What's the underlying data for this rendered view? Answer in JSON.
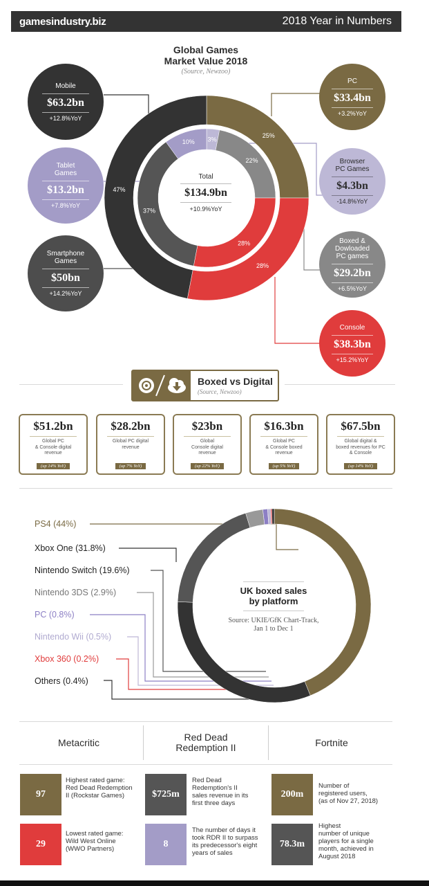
{
  "header": {
    "logo": "gamesindustry.biz",
    "title": "2018 Year in Numbers"
  },
  "market": {
    "title_line1": "Global Games",
    "title_line2": "Market Value 2018",
    "source": "(Source, Newzoo)",
    "total_label": "Total",
    "total_value": "$134.9bn",
    "total_yoy": "+10.9%YoY"
  },
  "bubbles": {
    "mobile": {
      "label": "Mobile",
      "value": "$63.2bn",
      "yoy": "+12.8%YoY",
      "color": "#333333"
    },
    "tablet": {
      "label1": "Tablet",
      "label2": "Games",
      "value": "$13.2bn",
      "yoy": "+7.8%YoY",
      "color": "#a39cc7"
    },
    "smartphone": {
      "label1": "Smartphone",
      "label2": "Games",
      "value": "$50bn",
      "yoy": "+14.2%YoY",
      "color": "#4d4d4d"
    },
    "pc": {
      "label": "PC",
      "value": "$33.4bn",
      "yoy": "+3.2%YoY",
      "color": "#7a6a43"
    },
    "browser": {
      "label1": "Browser",
      "label2": "PC Games",
      "value": "$4.3bn",
      "yoy": "-14.8%YoY",
      "color": "#bdb8d6"
    },
    "boxed": {
      "label1": "Boxed &",
      "label2": "Dowloaded",
      "label3": "PC games",
      "value": "$29.2bn",
      "yoy": "+6.5%YoY",
      "color": "#888888"
    },
    "console": {
      "label": "Console",
      "value": "$38.3bn",
      "yoy": "+15.2%YoY",
      "color": "#e03c3c"
    }
  },
  "boxed_digital": {
    "title": "Boxed vs Digital",
    "source": "(Source, Newzoo)",
    "cards": [
      {
        "value": "$51.2bn",
        "desc1": "Global PC",
        "desc2": "& Console digital",
        "desc3": "revenue",
        "badge": "(up 14% YoY)"
      },
      {
        "value": "$28.2bn",
        "desc1": "Global PC digital",
        "desc2": "revenue",
        "desc3": "",
        "badge": "(up 7% YoY)"
      },
      {
        "value": "$23bn",
        "desc1": "Global",
        "desc2": "Console digital",
        "desc3": "revenue",
        "badge": "(up 22% YoY)"
      },
      {
        "value": "$16.3bn",
        "desc1": "Global PC",
        "desc2": "& Console boxed",
        "desc3": "revenue",
        "badge": "(up 5% YoY)"
      },
      {
        "value": "$67.5bn",
        "desc1": "Global digital &",
        "desc2": "boxed revenues for PC",
        "desc3": "& Console",
        "badge": "(up 14% YoY)"
      }
    ]
  },
  "uk": {
    "title_line1": "UK boxed sales",
    "title_line2": "by platform",
    "source_line1": "Source: UKIE/GfK Chart-Track,",
    "source_line2": "Jan 1 to Dec 1"
  },
  "bottom": {
    "metacritic_head": "Metacritic",
    "rdr_head1": "Red Dead",
    "rdr_head2": "Redemption II",
    "fortnite_head": "Fortnite",
    "meta_hi_val": "97",
    "meta_hi_text": [
      "Highest rated game:",
      "Red Dead Redemption",
      "II (Rockstar Games)"
    ],
    "meta_lo_val": "29",
    "meta_lo_text": [
      "Lowest rated game:",
      "Wild West Online",
      "(WWO Partners)"
    ],
    "rdr_rev_val": "$725m",
    "rdr_rev_text": [
      "Red Dead",
      "Redemption's II",
      "sales revenue in its",
      "first three days"
    ],
    "rdr_days_val": "8",
    "rdr_days_text": [
      "The number of days it",
      "took RDR II to surpass",
      "its predecessor's eight",
      "years of sales"
    ],
    "fn_users_val": "200m",
    "fn_users_text": [
      "Number of",
      "registered users,",
      "(as of Nov 27, 2018)"
    ],
    "fn_peak_val": "78.3m",
    "fn_peak_text": [
      "Highest",
      "number of unique",
      "players for a single",
      "month, achieved in",
      "August 2018"
    ]
  },
  "chart_data": [
    {
      "type": "pie",
      "title": "Global Games Market Value 2018",
      "ring": "outer",
      "categories": [
        "PC",
        "Console",
        "Mobile"
      ],
      "values": [
        25,
        28,
        47
      ],
      "labels": [
        "25%",
        "28%",
        "47%"
      ],
      "colors": [
        "#7a6a43",
        "#e03c3c",
        "#333333"
      ]
    },
    {
      "type": "pie",
      "ring": "inner",
      "categories": [
        "Browser PC Games",
        "Boxed & Dowloaded PC games",
        "Console",
        "Smartphone Games",
        "Tablet Games"
      ],
      "values": [
        3,
        22,
        28,
        37,
        10
      ],
      "labels": [
        "3%",
        "22%",
        "28%",
        "37%",
        "10%"
      ],
      "colors": [
        "#bdb8d6",
        "#888888",
        "#e03c3c",
        "#555555",
        "#a39cc7"
      ]
    },
    {
      "type": "pie",
      "title": "UK boxed sales by platform",
      "categories": [
        "PS4",
        "Xbox One",
        "Nintendo Switch",
        "Nintendo 3DS",
        "PC",
        "Nintendo Wii",
        "Xbox 360",
        "Others"
      ],
      "values": [
        44,
        31.8,
        19.6,
        2.9,
        0.8,
        0.5,
        0.2,
        0.4
      ],
      "labels": [
        "PS4 (44%)",
        "Xbox One (31.8%)",
        "Nintendo Switch (19.6%)",
        "Nintendo 3DS (2.9%)",
        "PC (0.8%)",
        "Nintendo Wii (0.5%)",
        "Xbox 360 (0.2%)",
        "Others (0.4%)"
      ],
      "colors": [
        "#7a6a43",
        "#333333",
        "#555555",
        "#999999",
        "#8c7fc4",
        "#bdb8d6",
        "#e03c3c",
        "#333333"
      ]
    }
  ]
}
